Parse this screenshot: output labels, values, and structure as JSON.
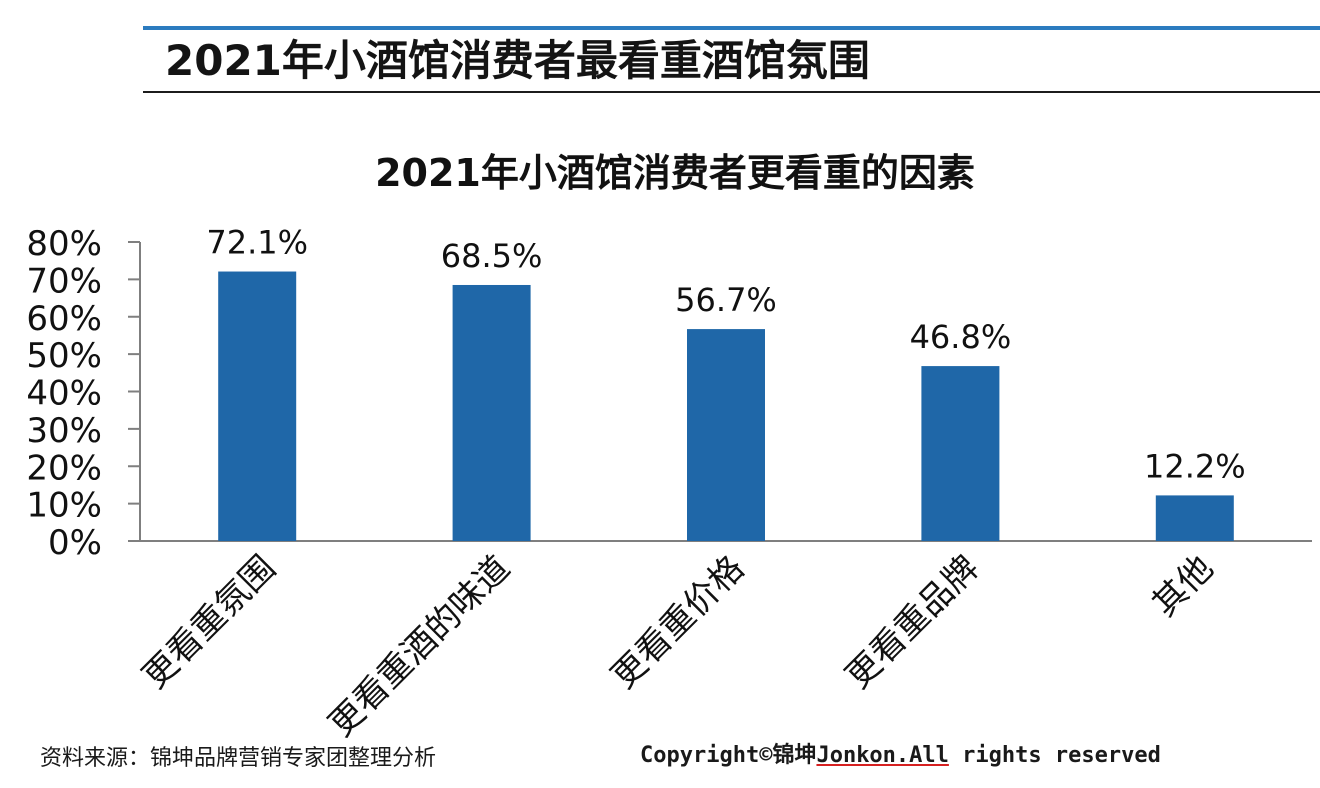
{
  "header": {
    "title": "2021年小酒馆消费者最看重酒馆氛围"
  },
  "colors": {
    "bar": "#1f67a8",
    "header_rule": "#2b7bbf",
    "axis": "#7f7f7f"
  },
  "chart_data": {
    "type": "bar",
    "title": "2021年小酒馆消费者更看重的因素",
    "categories": [
      "更看重氛围",
      "更看重酒的味道",
      "更看重价格",
      "更看重品牌",
      "其他"
    ],
    "values": [
      72.1,
      68.5,
      56.7,
      46.8,
      12.2
    ],
    "data_labels": [
      "72.1%",
      "68.5%",
      "56.7%",
      "46.8%",
      "12.2%"
    ],
    "yticks": [
      0,
      10,
      20,
      30,
      40,
      50,
      60,
      70,
      80
    ],
    "ytick_labels": [
      "0%",
      "10%",
      "20%",
      "30%",
      "40%",
      "50%",
      "60%",
      "70%",
      "80%"
    ],
    "ylim": [
      0,
      80
    ],
    "xlabel": "",
    "ylabel": "",
    "grid": false,
    "legend": "none"
  },
  "footer": {
    "source": "资料来源：锦坤品牌营销专家团整理分析",
    "copyright_prefix": "Copyright©锦坤",
    "copyright_brand": "Jonkon.All",
    "copyright_suffix": " rights reserved"
  }
}
